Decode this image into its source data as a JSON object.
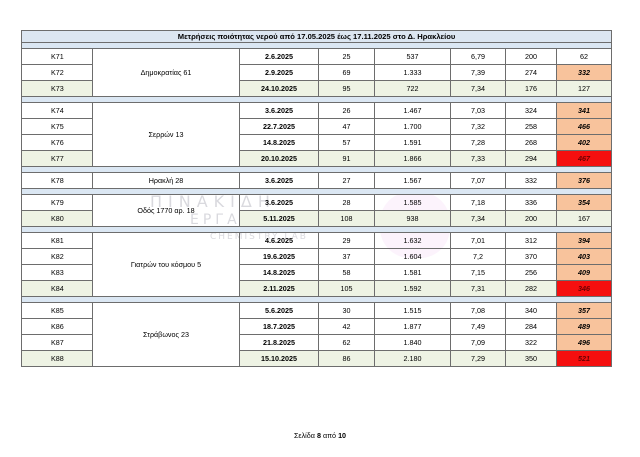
{
  "table": {
    "title": "Μετρήσεις ποιότητας νερού από 17.05.2025 έως 17.11.2025 στο Δ. Ηρακλείου",
    "groups": [
      {
        "address": "Δημοκρατίας 61",
        "rows": [
          {
            "id": "Κ71",
            "date": "2.6.2025",
            "v1": "25",
            "v2": "537",
            "v3": "6,79",
            "v4": "200",
            "v5": "62",
            "flag": "none"
          },
          {
            "id": "Κ72",
            "date": "2.9.2025",
            "v1": "69",
            "v2": "1.333",
            "v3": "7,39",
            "v4": "274",
            "v5": "332",
            "flag": "orange"
          },
          {
            "id": "Κ73",
            "date": "24.10.2025",
            "v1": "95",
            "v2": "722",
            "v3": "7,34",
            "v4": "176",
            "v5": "127",
            "flag": "none"
          }
        ]
      },
      {
        "address": "Σερρών 13",
        "rows": [
          {
            "id": "Κ74",
            "date": "3.6.2025",
            "v1": "26",
            "v2": "1.467",
            "v3": "7,03",
            "v4": "324",
            "v5": "341",
            "flag": "orange"
          },
          {
            "id": "Κ75",
            "date": "22.7.2025",
            "v1": "47",
            "v2": "1.700",
            "v3": "7,32",
            "v4": "258",
            "v5": "466",
            "flag": "orange"
          },
          {
            "id": "Κ76",
            "date": "14.8.2025",
            "v1": "57",
            "v2": "1.591",
            "v3": "7,28",
            "v4": "268",
            "v5": "402",
            "flag": "orange"
          },
          {
            "id": "Κ77",
            "date": "20.10.2025",
            "v1": "91",
            "v2": "1.866",
            "v3": "7,33",
            "v4": "294",
            "v5": "467",
            "flag": "red"
          }
        ]
      },
      {
        "address": "Ηρακλή 28",
        "rows": [
          {
            "id": "Κ78",
            "date": "3.6.2025",
            "v1": "27",
            "v2": "1.567",
            "v3": "7,07",
            "v4": "332",
            "v5": "376",
            "flag": "orange"
          }
        ]
      },
      {
        "address": "Οδός 1770 αρ. 18",
        "rows": [
          {
            "id": "Κ79",
            "date": "3.6.2025",
            "v1": "28",
            "v2": "1.585",
            "v3": "7,18",
            "v4": "336",
            "v5": "354",
            "flag": "orange"
          },
          {
            "id": "Κ80",
            "date": "5.11.2025",
            "v1": "108",
            "v2": "938",
            "v3": "7,34",
            "v4": "200",
            "v5": "167",
            "flag": "none"
          }
        ]
      },
      {
        "address": "Γιατρών του κόσμου 5",
        "rows": [
          {
            "id": "Κ81",
            "date": "4.6.2025",
            "v1": "29",
            "v2": "1.632",
            "v3": "7,01",
            "v4": "312",
            "v5": "394",
            "flag": "orange"
          },
          {
            "id": "Κ82",
            "date": "19.6.2025",
            "v1": "37",
            "v2": "1.604",
            "v3": "7,2",
            "v4": "370",
            "v5": "403",
            "flag": "orange"
          },
          {
            "id": "Κ83",
            "date": "14.8.2025",
            "v1": "58",
            "v2": "1.581",
            "v3": "7,15",
            "v4": "256",
            "v5": "409",
            "flag": "orange"
          },
          {
            "id": "Κ84",
            "date": "2.11.2025",
            "v1": "105",
            "v2": "1.592",
            "v3": "7,31",
            "v4": "282",
            "v5": "346",
            "flag": "red"
          }
        ]
      },
      {
        "address": "Στράβωνος 23",
        "rows": [
          {
            "id": "Κ85",
            "date": "5.6.2025",
            "v1": "30",
            "v2": "1.515",
            "v3": "7,08",
            "v4": "340",
            "v5": "357",
            "flag": "orange"
          },
          {
            "id": "Κ86",
            "date": "18.7.2025",
            "v1": "42",
            "v2": "1.877",
            "v3": "7,49",
            "v4": "284",
            "v5": "489",
            "flag": "orange"
          },
          {
            "id": "Κ87",
            "date": "21.8.2025",
            "v1": "62",
            "v2": "1.840",
            "v3": "7,09",
            "v4": "322",
            "v5": "496",
            "flag": "orange"
          },
          {
            "id": "Κ88",
            "date": "15.10.2025",
            "v1": "86",
            "v2": "2.180",
            "v3": "7,29",
            "v4": "350",
            "v5": "521",
            "flag": "red"
          }
        ]
      }
    ]
  },
  "footer": {
    "prefix": "Σελίδα",
    "page": "8",
    "middle": "από",
    "total": "10"
  },
  "watermark": {
    "line1": "ΠΙΝΑΚΙΔΗ",
    "line2": "ΕΡΓΑΣΤΗΡΙΑ",
    "line3": "CHEMISTRY LAB"
  },
  "colors": {
    "header_fill": "#dce6f1",
    "separator_fill": "#dbe7f3",
    "latest_row_fill": "#eef3e4",
    "exceed_fill": "#f8c39c",
    "alert_fill": "#f50f0f"
  }
}
